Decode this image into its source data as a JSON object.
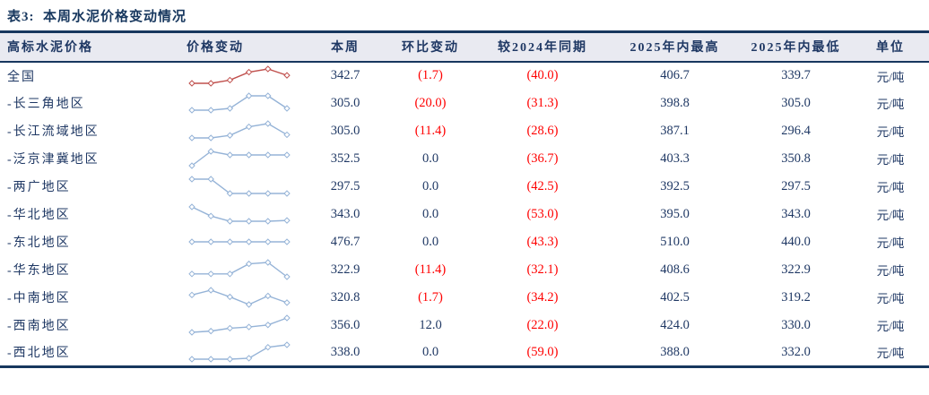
{
  "title": "表3:  本周水泥价格变动情况",
  "colors": {
    "navy_text": "#1f3864",
    "red_text": "#ff0000",
    "border": "#17375e",
    "header_bg": "#e9eaf1",
    "spark_red": "#c0504d",
    "spark_blue": "#95b3d7"
  },
  "table": {
    "headers": [
      "高标水泥价格",
      "价格变动",
      "本周",
      "环比变动",
      "较2024年同期",
      "2025年内最高",
      "2025年内最低",
      "单位"
    ],
    "rows": [
      {
        "region": "全国",
        "week": "342.7",
        "wow": "(1.7)",
        "yoy": "(40.0)",
        "high": "406.7",
        "low": "339.7",
        "unit": "元/吨",
        "spark_color": "#c0504d",
        "spark": [
          2.0,
          2.0,
          3.0,
          5.5,
          6.5,
          4.5
        ]
      },
      {
        "region": "-长三角地区",
        "week": "305.0",
        "wow": "(20.0)",
        "yoy": "(31.3)",
        "high": "398.8",
        "low": "305.0",
        "unit": "元/吨",
        "spark_color": "#95b3d7",
        "spark": [
          2.0,
          2.0,
          2.5,
          6.0,
          6.0,
          2.5
        ]
      },
      {
        "region": "-长江流域地区",
        "week": "305.0",
        "wow": "(11.4)",
        "yoy": "(28.6)",
        "high": "387.1",
        "low": "296.4",
        "unit": "元/吨",
        "spark_color": "#95b3d7",
        "spark": [
          2.0,
          2.0,
          2.8,
          5.5,
          6.5,
          3.0
        ]
      },
      {
        "region": "-泛京津冀地区",
        "week": "352.5",
        "wow": "0.0",
        "yoy": "(36.7)",
        "high": "403.3",
        "low": "350.8",
        "unit": "元/吨",
        "spark_color": "#95b3d7",
        "spark": [
          3.0,
          5.0,
          4.5,
          4.5,
          4.5,
          4.5
        ]
      },
      {
        "region": "-两广地区",
        "week": "297.5",
        "wow": "0.0",
        "yoy": "(42.5)",
        "high": "392.5",
        "low": "297.5",
        "unit": "元/吨",
        "spark_color": "#95b3d7",
        "spark": [
          6.0,
          6.0,
          2.5,
          2.5,
          2.5,
          2.5
        ]
      },
      {
        "region": "-华北地区",
        "week": "343.0",
        "wow": "0.0",
        "yoy": "(53.0)",
        "high": "395.0",
        "low": "343.0",
        "unit": "元/吨",
        "spark_color": "#95b3d7",
        "spark": [
          8.0,
          4.5,
          2.5,
          2.5,
          2.5,
          2.8
        ]
      },
      {
        "region": "-东北地区",
        "week": "476.7",
        "wow": "0.0",
        "yoy": "(43.3)",
        "high": "510.0",
        "low": "440.0",
        "unit": "元/吨",
        "spark_color": "#95b3d7",
        "spark": [
          4.0,
          4.0,
          4.0,
          4.0,
          4.0,
          4.0
        ]
      },
      {
        "region": "-华东地区",
        "week": "322.9",
        "wow": "(11.4)",
        "yoy": "(32.1)",
        "high": "408.6",
        "low": "322.9",
        "unit": "元/吨",
        "spark_color": "#95b3d7",
        "spark": [
          3.0,
          3.0,
          3.0,
          6.5,
          7.0,
          2.0
        ]
      },
      {
        "region": "-中南地区",
        "week": "320.8",
        "wow": "(1.7)",
        "yoy": "(34.2)",
        "high": "402.5",
        "low": "319.2",
        "unit": "元/吨",
        "spark_color": "#95b3d7",
        "spark": [
          4.5,
          5.0,
          4.3,
          3.5,
          4.4,
          3.7
        ]
      },
      {
        "region": "-西南地区",
        "week": "356.0",
        "wow": "12.0",
        "yoy": "(22.0)",
        "high": "424.0",
        "low": "330.0",
        "unit": "元/吨",
        "spark_color": "#95b3d7",
        "spark": [
          2.0,
          2.3,
          3.0,
          3.3,
          3.8,
          5.5
        ]
      },
      {
        "region": "-西北地区",
        "week": "338.0",
        "wow": "0.0",
        "yoy": "(59.0)",
        "high": "388.0",
        "low": "332.0",
        "unit": "元/吨",
        "spark_color": "#95b3d7",
        "spark": [
          2.0,
          2.0,
          2.0,
          2.2,
          4.5,
          5.0
        ]
      }
    ]
  },
  "chart_data": [
    {
      "type": "line",
      "name": "全国价格变动",
      "color": "#c0504d",
      "x": [
        1,
        2,
        3,
        4,
        5,
        6
      ],
      "values": [
        2.0,
        2.0,
        3.0,
        5.5,
        6.5,
        4.5
      ],
      "title": "",
      "xlabel": "",
      "ylabel": "",
      "grid": false,
      "legend": "none",
      "note": "sparkline, relative price level"
    },
    {
      "type": "line",
      "name": "长三角地区价格变动",
      "color": "#95b3d7",
      "x": [
        1,
        2,
        3,
        4,
        5,
        6
      ],
      "values": [
        2.0,
        2.0,
        2.5,
        6.0,
        6.0,
        2.5
      ]
    },
    {
      "type": "line",
      "name": "长江流域地区价格变动",
      "color": "#95b3d7",
      "x": [
        1,
        2,
        3,
        4,
        5,
        6
      ],
      "values": [
        2.0,
        2.0,
        2.8,
        5.5,
        6.5,
        3.0
      ]
    },
    {
      "type": "line",
      "name": "泛京津冀地区价格变动",
      "color": "#95b3d7",
      "x": [
        1,
        2,
        3,
        4,
        5,
        6
      ],
      "values": [
        3.0,
        5.0,
        4.5,
        4.5,
        4.5,
        4.5
      ]
    },
    {
      "type": "line",
      "name": "两广地区价格变动",
      "color": "#95b3d7",
      "x": [
        1,
        2,
        3,
        4,
        5,
        6
      ],
      "values": [
        6.0,
        6.0,
        2.5,
        2.5,
        2.5,
        2.5
      ]
    },
    {
      "type": "line",
      "name": "华北地区价格变动",
      "color": "#95b3d7",
      "x": [
        1,
        2,
        3,
        4,
        5,
        6
      ],
      "values": [
        8.0,
        4.5,
        2.5,
        2.5,
        2.5,
        2.8
      ]
    },
    {
      "type": "line",
      "name": "东北地区价格变动",
      "color": "#95b3d7",
      "x": [
        1,
        2,
        3,
        4,
        5,
        6
      ],
      "values": [
        4.0,
        4.0,
        4.0,
        4.0,
        4.0,
        4.0
      ]
    },
    {
      "type": "line",
      "name": "华东地区价格变动",
      "color": "#95b3d7",
      "x": [
        1,
        2,
        3,
        4,
        5,
        6
      ],
      "values": [
        3.0,
        3.0,
        3.0,
        6.5,
        7.0,
        2.0
      ]
    },
    {
      "type": "line",
      "name": "中南地区价格变动",
      "color": "#95b3d7",
      "x": [
        1,
        2,
        3,
        4,
        5,
        6
      ],
      "values": [
        4.5,
        5.0,
        4.3,
        3.5,
        4.4,
        3.7
      ]
    },
    {
      "type": "line",
      "name": "西南地区价格变动",
      "color": "#95b3d7",
      "x": [
        1,
        2,
        3,
        4,
        5,
        6
      ],
      "values": [
        2.0,
        2.3,
        3.0,
        3.3,
        3.8,
        5.5
      ]
    },
    {
      "type": "line",
      "name": "西北地区价格变动",
      "color": "#95b3d7",
      "x": [
        1,
        2,
        3,
        4,
        5,
        6
      ],
      "values": [
        2.0,
        2.0,
        2.0,
        2.2,
        4.5,
        5.0
      ]
    }
  ]
}
